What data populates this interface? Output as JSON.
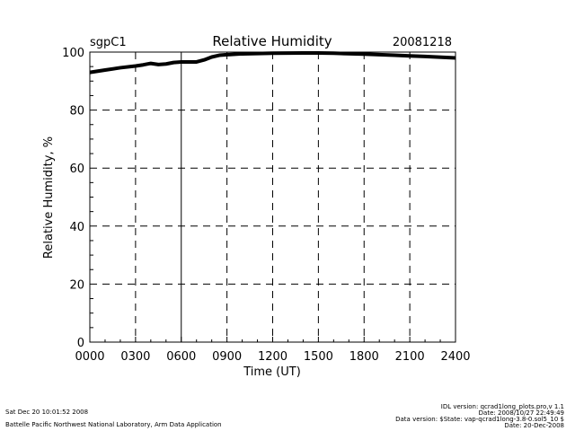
{
  "header": {
    "site": "sgpC1",
    "date": "20081218"
  },
  "footer": {
    "timestamp": "Sat Dec 20 10:01:52 2008",
    "lab": "Battelle Pacific Northwest National Laboratory, Arm Data Application",
    "idl_version": "IDL version: qcrad1long_plots.pro,v 1.1",
    "idl_date": "Date: 2008/10/27 22:49:49",
    "data_version": "Data version: $State: vap-qcrad1long-3.8-0.sol5_10 $",
    "data_date": "Date: 20-Dec-2008"
  },
  "chart_data": {
    "type": "line",
    "title": "Relative Humidity",
    "xlabel": "Time (UT)",
    "ylabel": "Relative Humidity, %",
    "xlim": [
      0,
      24
    ],
    "ylim": [
      0,
      100
    ],
    "xticks": [
      0,
      3,
      6,
      9,
      12,
      15,
      18,
      21,
      24
    ],
    "xtick_labels": [
      "0000",
      "0300",
      "0600",
      "0900",
      "1200",
      "1500",
      "1800",
      "2100",
      "2400"
    ],
    "yticks": [
      0,
      20,
      40,
      60,
      80,
      100
    ],
    "ytick_labels": [
      "0",
      "20",
      "40",
      "60",
      "80",
      "100"
    ],
    "grid": true,
    "series": [
      {
        "name": "RH",
        "color": "#000000",
        "x": [
          0,
          1,
          2,
          3,
          3.5,
          4,
          4.5,
          5,
          5.5,
          6,
          7,
          7.5,
          8,
          8.5,
          9,
          10,
          12,
          14,
          15,
          16,
          18,
          20,
          21,
          22,
          24
        ],
        "y": [
          93,
          93.8,
          94.6,
          95.2,
          95.6,
          96.1,
          95.7,
          95.9,
          96.4,
          96.6,
          96.6,
          97.3,
          98.3,
          98.9,
          99.1,
          99.4,
          99.6,
          99.7,
          99.7,
          99.6,
          99.3,
          98.9,
          98.7,
          98.5,
          98.0
        ]
      }
    ]
  }
}
